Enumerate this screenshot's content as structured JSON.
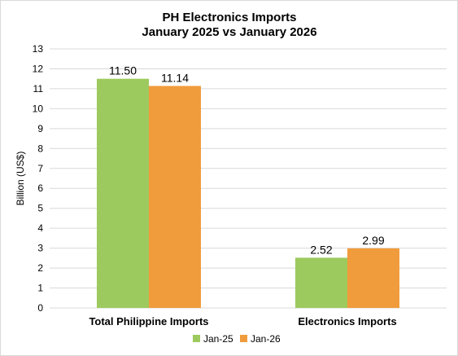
{
  "chart_data": {
    "type": "bar",
    "title": [
      "PH Electronics Imports",
      "January 2025 vs January 2026"
    ],
    "ylabel": "Billion (US$)",
    "xlabel": "",
    "ylim": [
      0,
      13
    ],
    "yticks": [
      0,
      1,
      2,
      3,
      4,
      5,
      6,
      7,
      8,
      9,
      10,
      11,
      12,
      13
    ],
    "categories": [
      "Total Philippine Imports",
      "Electronics Imports"
    ],
    "series": [
      {
        "name": "Jan-25",
        "values": [
          11.5,
          2.52
        ],
        "labels": [
          "11.50",
          "2.52"
        ],
        "color": "#9dca5e"
      },
      {
        "name": "Jan-26",
        "values": [
          11.14,
          2.99
        ],
        "labels": [
          "11.14",
          "2.99"
        ],
        "color": "#f09c3d"
      }
    ],
    "grid": true,
    "legend_position": "bottom"
  }
}
